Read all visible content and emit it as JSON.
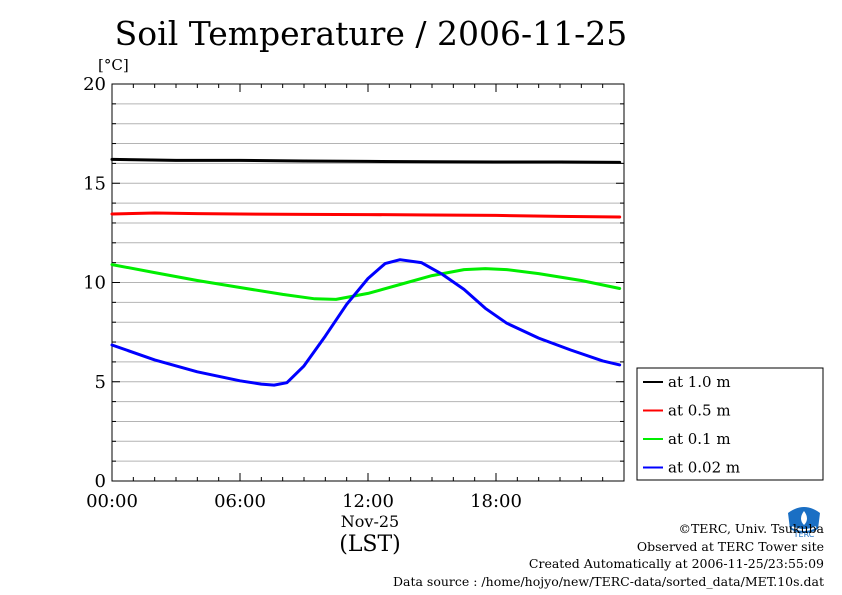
{
  "chart_data": {
    "type": "line",
    "title": "Soil Temperature / 2006-11-25",
    "ylabel": "[°C]",
    "xlabel": "(LST)",
    "x_date_label": "Nov-25",
    "ylim": [
      0,
      20
    ],
    "y_ticks": [
      "0",
      "5",
      "10",
      "15",
      "20"
    ],
    "x_ticks": [
      "00:00",
      "06:00",
      "12:00",
      "18:00"
    ],
    "xlim_hours": [
      0,
      24
    ],
    "grid": true,
    "legend_position": "right",
    "series": [
      {
        "name": "at 1.0 m",
        "color": "#000000",
        "points": [
          [
            0,
            16.2
          ],
          [
            3,
            16.15
          ],
          [
            6,
            16.15
          ],
          [
            9,
            16.12
          ],
          [
            12,
            16.1
          ],
          [
            15,
            16.08
          ],
          [
            18,
            16.07
          ],
          [
            21,
            16.07
          ],
          [
            23.8,
            16.05
          ]
        ]
      },
      {
        "name": "at 0.5 m",
        "color": "#ff0000",
        "points": [
          [
            0,
            13.45
          ],
          [
            2,
            13.5
          ],
          [
            4,
            13.47
          ],
          [
            6,
            13.45
          ],
          [
            9,
            13.43
          ],
          [
            12,
            13.42
          ],
          [
            15,
            13.4
          ],
          [
            18,
            13.38
          ],
          [
            21,
            13.33
          ],
          [
            23.8,
            13.3
          ]
        ]
      },
      {
        "name": "at 0.1 m",
        "color": "#00ee00",
        "points": [
          [
            0,
            10.9
          ],
          [
            2,
            10.5
          ],
          [
            4,
            10.1
          ],
          [
            6,
            9.75
          ],
          [
            8,
            9.4
          ],
          [
            9.5,
            9.18
          ],
          [
            10.5,
            9.15
          ],
          [
            12,
            9.45
          ],
          [
            13.5,
            9.9
          ],
          [
            15,
            10.35
          ],
          [
            16.5,
            10.65
          ],
          [
            17.5,
            10.7
          ],
          [
            18.5,
            10.65
          ],
          [
            20,
            10.45
          ],
          [
            22,
            10.1
          ],
          [
            23.8,
            9.7
          ]
        ]
      },
      {
        "name": "at 0.02 m",
        "color": "#0000ff",
        "points": [
          [
            0,
            6.85
          ],
          [
            2,
            6.1
          ],
          [
            4,
            5.5
          ],
          [
            6,
            5.05
          ],
          [
            7,
            4.88
          ],
          [
            7.6,
            4.83
          ],
          [
            8.2,
            4.95
          ],
          [
            9,
            5.8
          ],
          [
            10,
            7.3
          ],
          [
            11,
            8.9
          ],
          [
            12,
            10.2
          ],
          [
            12.8,
            10.95
          ],
          [
            13.5,
            11.15
          ],
          [
            14.5,
            11.0
          ],
          [
            15.5,
            10.4
          ],
          [
            16.5,
            9.65
          ],
          [
            17.5,
            8.7
          ],
          [
            18.5,
            7.95
          ],
          [
            20,
            7.2
          ],
          [
            21.5,
            6.6
          ],
          [
            23,
            6.05
          ],
          [
            23.8,
            5.85
          ]
        ]
      }
    ]
  },
  "credits": {
    "copyright": "©TERC, Univ. Tsukuba",
    "observed": "Observed at TERC Tower site",
    "created": "Created Automatically at 2006-11-25/23:55:09",
    "source": "Data source : /home/hojyo/new/TERC-data/sorted_data/MET.10s.dat"
  },
  "logo": {
    "text": "TERC",
    "color": "#1a6fc4"
  }
}
